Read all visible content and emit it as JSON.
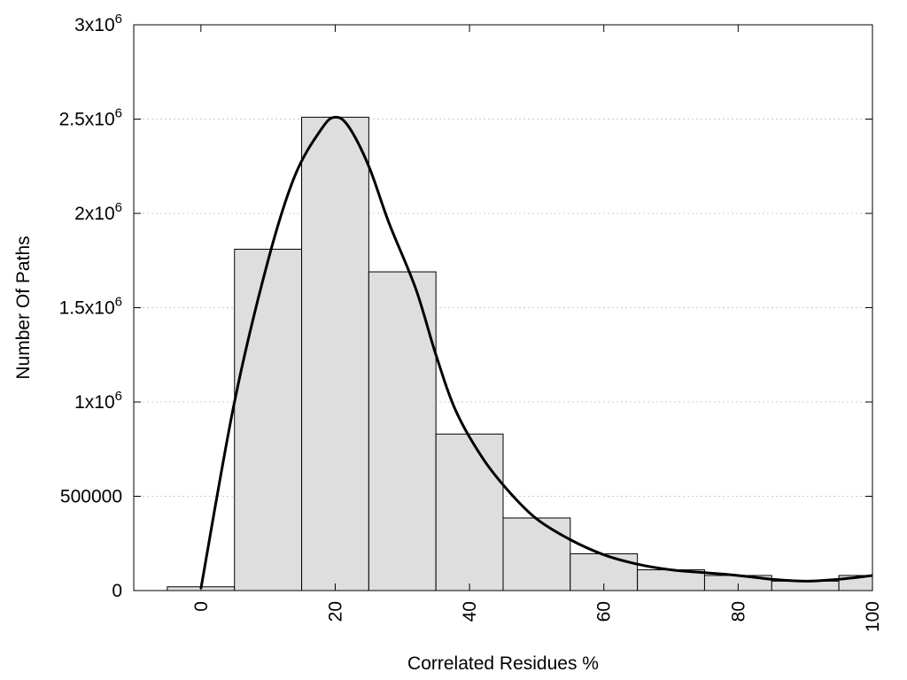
{
  "chart_data": {
    "type": "bar",
    "xlabel": "Correlated Residues %",
    "ylabel": "Number Of Paths",
    "xlim": [
      -10,
      100
    ],
    "ylim": [
      0,
      3000000
    ],
    "grid": true,
    "x_ticks": [
      0,
      20,
      40,
      60,
      80,
      100
    ],
    "y_ticks": [
      {
        "value": 0,
        "label": "0"
      },
      {
        "value": 500000,
        "label": "500000"
      },
      {
        "value": 1000000,
        "label": "1x10",
        "exp": "6"
      },
      {
        "value": 1500000,
        "label": "1.5x10",
        "exp": "6"
      },
      {
        "value": 2000000,
        "label": "2x10",
        "exp": "6"
      },
      {
        "value": 2500000,
        "label": "2.5x10",
        "exp": "6"
      },
      {
        "value": 3000000,
        "label": "3x10",
        "exp": "6"
      }
    ],
    "bins": [
      {
        "x0": -5,
        "x1": 5,
        "value": 20000
      },
      {
        "x0": 5,
        "x1": 15,
        "value": 1810000
      },
      {
        "x0": 15,
        "x1": 25,
        "value": 2510000
      },
      {
        "x0": 25,
        "x1": 35,
        "value": 1690000
      },
      {
        "x0": 35,
        "x1": 45,
        "value": 830000
      },
      {
        "x0": 45,
        "x1": 55,
        "value": 385000
      },
      {
        "x0": 55,
        "x1": 65,
        "value": 195000
      },
      {
        "x0": 65,
        "x1": 75,
        "value": 110000
      },
      {
        "x0": 75,
        "x1": 85,
        "value": 80000
      },
      {
        "x0": 85,
        "x1": 95,
        "value": 50000
      },
      {
        "x0": 95,
        "x1": 100,
        "value": 80000
      }
    ],
    "fit_curve": {
      "x": [
        0,
        5,
        10,
        14,
        18,
        20,
        22,
        25,
        28,
        32,
        35,
        38,
        42,
        46,
        50,
        55,
        60,
        65,
        70,
        75,
        80,
        85,
        90,
        95,
        100
      ],
      "y": [
        10000,
        1000000,
        1750000,
        2200000,
        2450000,
        2510000,
        2460000,
        2250000,
        1950000,
        1600000,
        1250000,
        950000,
        700000,
        520000,
        380000,
        270000,
        190000,
        140000,
        110000,
        95000,
        80000,
        60000,
        50000,
        60000,
        80000
      ]
    },
    "colors": {
      "bar_fill": "#dedede",
      "bar_stroke": "#000000",
      "curve": "#000000",
      "grid": "#cccccc"
    }
  }
}
